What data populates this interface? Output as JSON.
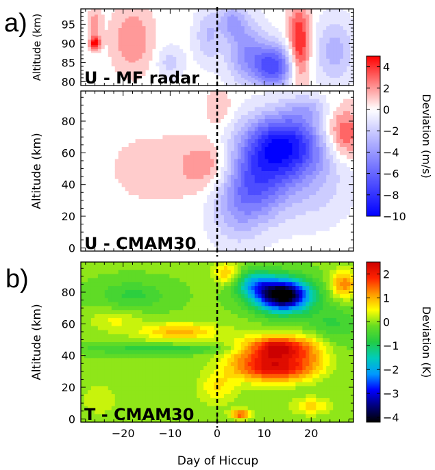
{
  "panel_labels": {
    "a": "a)",
    "b": "b)"
  },
  "xlabel": "Day of Hiccup",
  "colorbars": {
    "u": {
      "label": "Deviation (m/s)",
      "ticks": [
        4,
        2,
        0,
        -2,
        -4,
        -6,
        -8,
        -10
      ],
      "tick_text": [
        "4",
        "2",
        "0",
        "−2",
        "−4",
        "−6",
        "−8",
        "−10"
      ],
      "range": [
        -10,
        5
      ],
      "colors": [
        "#0000ff",
        "#ffffff",
        "#ff0000"
      ]
    },
    "t": {
      "label": "Deviation (K)",
      "ticks": [
        2,
        1,
        0,
        -1,
        -2,
        -3,
        -4
      ],
      "tick_text": [
        "2",
        "1",
        "0",
        "−1",
        "−2",
        "−3",
        "−4"
      ],
      "range": [
        -4.2,
        2.5
      ],
      "colors": [
        "#000000",
        "#00007a",
        "#0000ff",
        "#0099ff",
        "#00ccbb",
        "#22cc44",
        "#66dd22",
        "#ffff00",
        "#ff9900",
        "#ff2200",
        "#cc0000"
      ]
    }
  },
  "chart_data": [
    {
      "type": "heatmap",
      "title": "U - MF radar",
      "ylabel": "Altitude (km)",
      "xlim": [
        -29,
        29
      ],
      "ylim": [
        79,
        99
      ],
      "x_ticks": [
        -20,
        -10,
        0,
        10,
        20
      ],
      "y_ticks": [
        80,
        85,
        90,
        95
      ],
      "y_tick_text": [
        "80",
        "85",
        "90",
        "95"
      ],
      "colorbar": "u",
      "onset_day": 0,
      "features": [
        {
          "x": -18,
          "y": 91,
          "sx": 3,
          "sy": 6,
          "value": 2.5
        },
        {
          "x": -26,
          "y": 90,
          "sx": 0.8,
          "sy": 1.2,
          "value": 5
        },
        {
          "x": -26,
          "y": 95,
          "sx": 1,
          "sy": 3,
          "value": 2
        },
        {
          "x": -10,
          "y": 85,
          "sx": 2,
          "sy": 3,
          "value": -2
        },
        {
          "x": -2,
          "y": 92,
          "sx": 2,
          "sy": 5,
          "value": -2.5
        },
        {
          "x": 6,
          "y": 88,
          "sx": 3,
          "sy": 6,
          "value": -4
        },
        {
          "x": 12,
          "y": 84,
          "sx": 3,
          "sy": 4,
          "value": -7
        },
        {
          "x": 17.5,
          "y": 90,
          "sx": 1.6,
          "sy": 7,
          "value": 5
        },
        {
          "x": 25,
          "y": 88,
          "sx": 3,
          "sy": 6,
          "value": -3
        },
        {
          "x": 3,
          "y": 96,
          "sx": 2,
          "sy": 3,
          "value": -3
        }
      ]
    },
    {
      "type": "heatmap",
      "title": "U - CMAM30",
      "ylabel": "Altitude (km)",
      "xlim": [
        -29,
        29
      ],
      "ylim": [
        -2,
        99
      ],
      "x_ticks": [
        -20,
        -10,
        0,
        10,
        20
      ],
      "y_ticks": [
        0,
        20,
        40,
        60,
        80
      ],
      "y_tick_text": [
        "0",
        "20",
        "40",
        "60",
        "80"
      ],
      "colorbar": "u",
      "onset_day": 0,
      "features": [
        {
          "x": -2,
          "y": 52,
          "sx": 4,
          "sy": 11,
          "value": 2.5
        },
        {
          "x": -14,
          "y": 50,
          "sx": 8,
          "sy": 20,
          "value": 0.8
        },
        {
          "x": 0.5,
          "y": 88,
          "sx": 2,
          "sy": 8,
          "value": 1.5
        },
        {
          "x": 14,
          "y": 65,
          "sx": 6,
          "sy": 14,
          "value": -9
        },
        {
          "x": 8,
          "y": 40,
          "sx": 5,
          "sy": 16,
          "value": -5.5
        },
        {
          "x": 4,
          "y": 20,
          "sx": 4,
          "sy": 15,
          "value": -2
        },
        {
          "x": 20,
          "y": 40,
          "sx": 6,
          "sy": 18,
          "value": -2
        },
        {
          "x": 27,
          "y": 72,
          "sx": 3,
          "sy": 11,
          "value": 4
        },
        {
          "x": 19,
          "y": 88,
          "sx": 3,
          "sy": 6,
          "value": -2
        }
      ]
    },
    {
      "type": "heatmap",
      "title": "T - CMAM30",
      "ylabel": "Altitude (km)",
      "xlim": [
        -29,
        29
      ],
      "ylim": [
        -2,
        99
      ],
      "x_ticks": [
        -20,
        -10,
        0,
        10,
        20
      ],
      "x_tick_text": [
        "−20",
        "−10",
        "0",
        "10",
        "20"
      ],
      "y_ticks": [
        0,
        20,
        40,
        60,
        80
      ],
      "y_tick_text": [
        "0",
        "20",
        "40",
        "60",
        "80"
      ],
      "colorbar": "t",
      "onset_day": 0,
      "baseline": -0.1,
      "features": [
        {
          "x": 14,
          "y": 78,
          "sx": 4,
          "sy": 7,
          "value": -4.5
        },
        {
          "x": 8,
          "y": 85,
          "sx": 3,
          "sy": 6,
          "value": -1.5
        },
        {
          "x": 13,
          "y": 45,
          "sx": 4,
          "sy": 5,
          "value": 2.4
        },
        {
          "x": 13,
          "y": 32,
          "sx": 5,
          "sy": 6,
          "value": 2.2
        },
        {
          "x": 6,
          "y": 38,
          "sx": 4,
          "sy": 9,
          "value": 0.8
        },
        {
          "x": 20,
          "y": 42,
          "sx": 3,
          "sy": 9,
          "value": 0.8
        },
        {
          "x": -8,
          "y": 55,
          "sx": 6,
          "sy": 4,
          "value": 1.1
        },
        {
          "x": -12,
          "y": 44,
          "sx": 12,
          "sy": 2,
          "value": -0.7
        },
        {
          "x": -18,
          "y": 78,
          "sx": 5,
          "sy": 6,
          "value": -0.6
        },
        {
          "x": -22,
          "y": 62,
          "sx": 4,
          "sy": 5,
          "value": 0.5
        },
        {
          "x": 2,
          "y": 92,
          "sx": 2,
          "sy": 5,
          "value": 1.0
        },
        {
          "x": 27,
          "y": 85,
          "sx": 2,
          "sy": 6,
          "value": 1.4
        },
        {
          "x": 5,
          "y": 3,
          "sx": 1.5,
          "sy": 2,
          "value": 1.8
        },
        {
          "x": 20,
          "y": 8,
          "sx": 3,
          "sy": 4,
          "value": 0.8
        },
        {
          "x": -25,
          "y": 12,
          "sx": 3,
          "sy": 8,
          "value": 0.4
        },
        {
          "x": 0,
          "y": 20,
          "sx": 3,
          "sy": 8,
          "value": 0.7
        },
        {
          "x": 24,
          "y": 60,
          "sx": 4,
          "sy": 8,
          "value": -0.6
        }
      ]
    }
  ]
}
